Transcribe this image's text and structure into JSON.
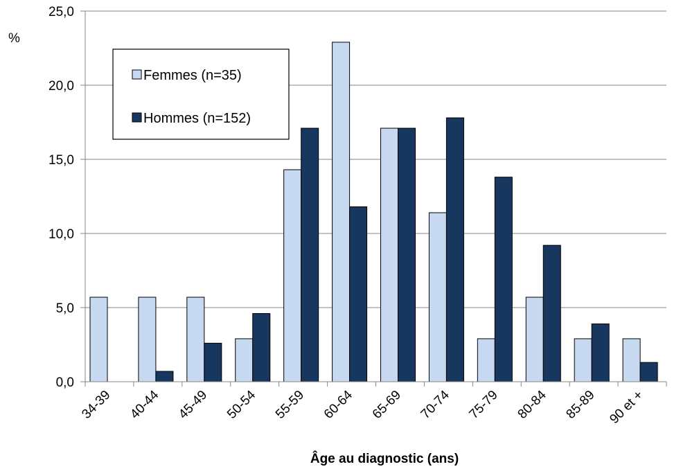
{
  "chart_data": {
    "type": "bar",
    "categories": [
      "34-39",
      "40-44",
      "45-49",
      "50-54",
      "55-59",
      "60-64",
      "65-69",
      "70-74",
      "75-79",
      "80-84",
      "85-89",
      "90 et +"
    ],
    "series": [
      {
        "name": "Femmes (n=35)",
        "color": "#c6d9f1",
        "values": [
          5.7,
          5.7,
          5.7,
          2.9,
          14.3,
          22.9,
          17.1,
          11.4,
          2.9,
          5.7,
          2.9,
          2.9
        ]
      },
      {
        "name": "Hommes (n=152)",
        "color": "#17375e",
        "values": [
          0.0,
          0.7,
          2.6,
          4.6,
          17.1,
          11.8,
          17.1,
          17.8,
          13.8,
          9.2,
          3.9,
          1.3
        ]
      }
    ],
    "ylim": [
      0,
      25
    ],
    "yticks": [
      "0,0",
      "5,0",
      "10,0",
      "15,0",
      "20,0",
      "25,0"
    ],
    "ylabel": "%",
    "xlabel": "Âge au diagnostic (ans)",
    "grid": true,
    "legend_position": "top-left"
  }
}
